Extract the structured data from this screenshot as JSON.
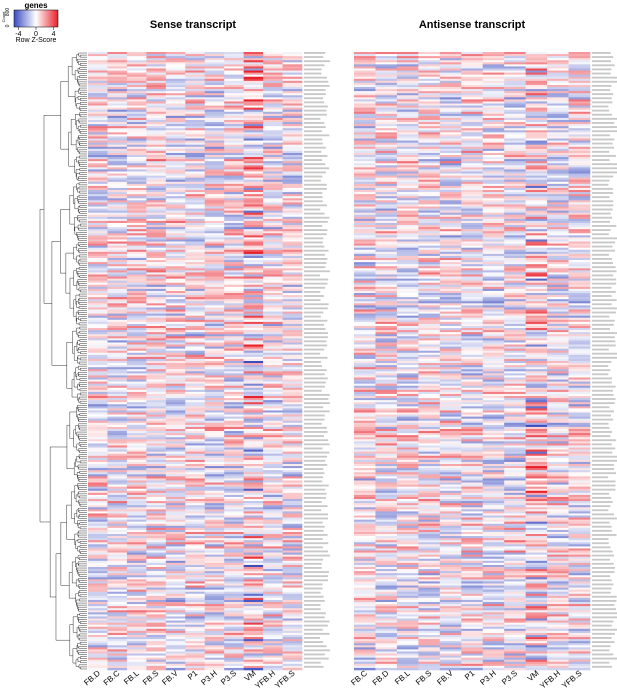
{
  "legend": {
    "title": "genes",
    "axis_label": "Row Z-Score",
    "count_axis_label": "Count",
    "count_ticks": [
      "0",
      "800"
    ],
    "ticks": [
      "-4",
      "0",
      "4"
    ],
    "range": [
      -5,
      5
    ],
    "colors": {
      "low": "#3b4cc0",
      "mid": "#ffffff",
      "high": "#e8202a"
    }
  },
  "chart_data": [
    {
      "type": "heatmap",
      "title": "Sense transcript",
      "columns": [
        "FB.D",
        "FB.C",
        "FB.L",
        "FB.S",
        "FB.V",
        "P1",
        "P3.H",
        "P3.S",
        "VM",
        "YFB.H",
        "YFB.S"
      ],
      "row_count": 300,
      "value_range": [
        -5,
        5
      ],
      "dendrogram": "rows"
    },
    {
      "type": "heatmap",
      "title": "Antisense transcript",
      "columns": [
        "FB.C",
        "FB.D",
        "FB.L",
        "FB.S",
        "FB.V",
        "P1",
        "P3.H",
        "P3.S",
        "VM",
        "YFB.H",
        "YFB.S"
      ],
      "row_count": 300,
      "value_range": [
        -5,
        5
      ],
      "dendrogram": "none"
    }
  ]
}
